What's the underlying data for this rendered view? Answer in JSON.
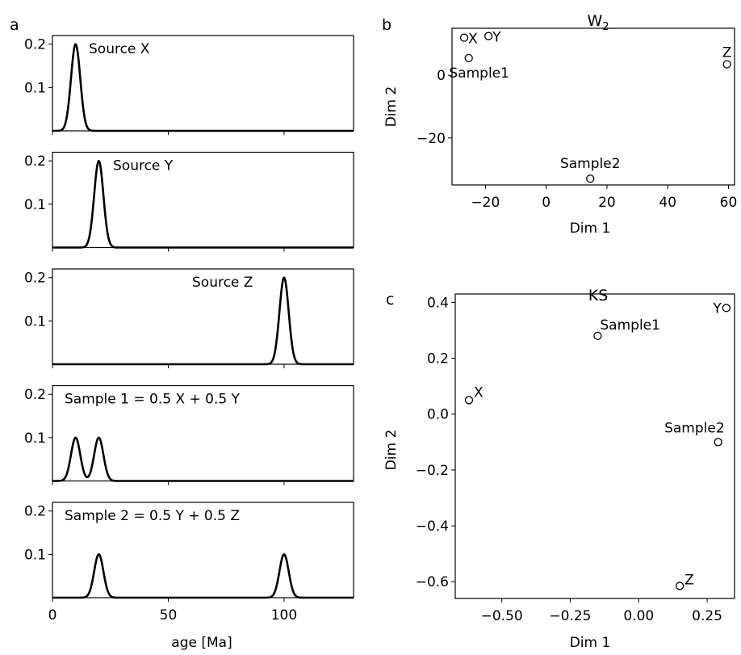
{
  "chart_data": [
    {
      "panel": "a",
      "type": "line",
      "xlabel": "age [Ma]",
      "xlim": [
        0,
        130
      ],
      "ylim": [
        0,
        0.22
      ],
      "xticks": [
        0,
        50,
        100
      ],
      "yticks": [
        0.1,
        0.2
      ],
      "subplots": [
        {
          "label": "Source X",
          "peaks": [
            {
              "center": 10,
              "height": 0.2
            }
          ]
        },
        {
          "label": "Source Y",
          "peaks": [
            {
              "center": 20,
              "height": 0.2
            }
          ]
        },
        {
          "label": "Source Z",
          "peaks": [
            {
              "center": 100,
              "height": 0.2
            }
          ]
        },
        {
          "label": "Sample 1 = 0.5 X + 0.5 Y",
          "peaks": [
            {
              "center": 10,
              "height": 0.1
            },
            {
              "center": 20,
              "height": 0.1
            }
          ]
        },
        {
          "label": "Sample 2 = 0.5 Y + 0.5 Z",
          "peaks": [
            {
              "center": 20,
              "height": 0.1
            },
            {
              "center": 100,
              "height": 0.1
            }
          ]
        }
      ]
    },
    {
      "panel": "b",
      "type": "scatter",
      "title": "W₂",
      "xlabel": "Dim 1",
      "ylabel": "Dim 2",
      "xlim": [
        -31,
        62
      ],
      "ylim": [
        -35,
        15
      ],
      "xticks": [
        -20,
        0,
        20,
        40,
        60
      ],
      "yticks": [
        -20,
        0
      ],
      "points": [
        {
          "name": "X",
          "x": -27,
          "y": 12
        },
        {
          "name": "Y",
          "x": -19,
          "y": 12.5
        },
        {
          "name": "Sample1",
          "x": -25.5,
          "y": 5.5
        },
        {
          "name": "Z",
          "x": 59.5,
          "y": 3.5
        },
        {
          "name": "Sample2",
          "x": 14.5,
          "y": -33
        }
      ]
    },
    {
      "panel": "c",
      "type": "scatter",
      "title": "KS",
      "xlabel": "Dim 1",
      "ylabel": "Dim 2",
      "xlim": [
        -0.67,
        0.35
      ],
      "ylim": [
        -0.66,
        0.43
      ],
      "xticks": [
        -0.5,
        -0.25,
        0.0,
        0.25
      ],
      "yticks": [
        -0.6,
        -0.4,
        -0.2,
        0.0,
        0.2,
        0.4
      ],
      "points": [
        {
          "name": "Y",
          "x": 0.32,
          "y": 0.38
        },
        {
          "name": "Sample1",
          "x": -0.15,
          "y": 0.28
        },
        {
          "name": "X",
          "x": -0.62,
          "y": 0.05
        },
        {
          "name": "Sample2",
          "x": 0.29,
          "y": -0.1
        },
        {
          "name": "Z",
          "x": 0.15,
          "y": -0.615
        }
      ]
    }
  ],
  "panel_letters": {
    "a": "a",
    "b": "b",
    "c": "c"
  },
  "tick_text": {
    "a_x": [
      "0",
      "50",
      "100"
    ],
    "a_y": [
      "0.1",
      "0.2"
    ],
    "b_x": [
      "−20",
      "0",
      "20",
      "40",
      "60"
    ],
    "b_y": [
      "−20",
      "0"
    ],
    "c_x": [
      "−0.50",
      "−0.25",
      "0.00",
      "0.25"
    ],
    "c_y": [
      "−0.6",
      "−0.4",
      "−0.2",
      "0.0",
      "0.2",
      "0.4"
    ]
  }
}
